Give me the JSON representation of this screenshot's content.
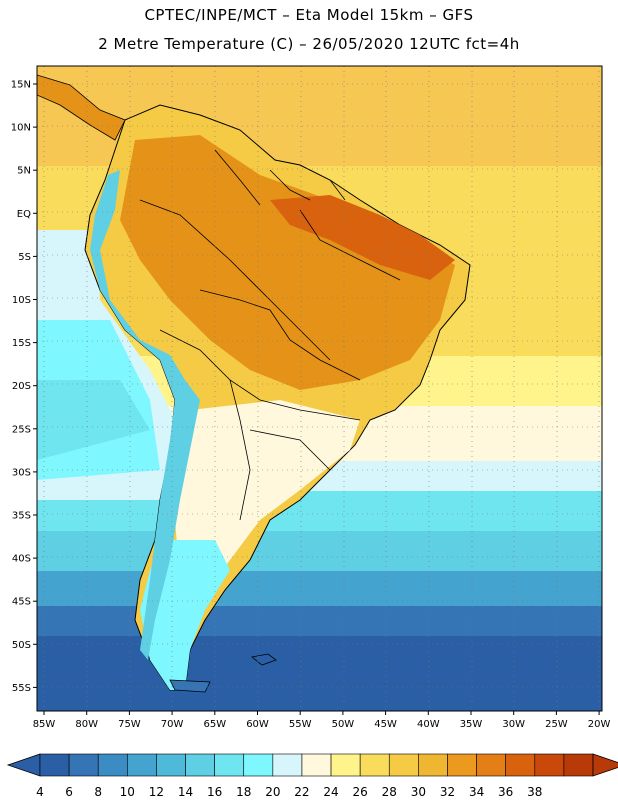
{
  "header": {
    "title_line1": "CPTEC/INPE/MCT –  Eta Model 15km – GFS",
    "title_line2": "2 Metre Temperature (C) – 26/05/2020 12UTC fct=4h"
  },
  "map": {
    "lat_labels": [
      "15N",
      "10N",
      "5N",
      "EQ",
      "5S",
      "10S",
      "15S",
      "20S",
      "25S",
      "30S",
      "35S",
      "40S",
      "45S",
      "50S",
      "55S"
    ],
    "lon_labels": [
      "85W",
      "80W",
      "75W",
      "70W",
      "65W",
      "60W",
      "55W",
      "50W",
      "45W",
      "40W",
      "35W",
      "30W",
      "25W",
      "20W"
    ]
  },
  "colorbar": {
    "ticks": [
      "4",
      "6",
      "8",
      "10",
      "12",
      "14",
      "16",
      "18",
      "20",
      "22",
      "24",
      "26",
      "28",
      "30",
      "32",
      "34",
      "36",
      "38"
    ],
    "colors": [
      "#2a5fa5",
      "#3575b5",
      "#3b8bc4",
      "#44a3cf",
      "#4fb9d9",
      "#5fcfe3",
      "#6fe6ef",
      "#7ff7ff",
      "#d7f6fb",
      "#fff8dd",
      "#fff48c",
      "#f9dc5c",
      "#f5cb45",
      "#efb632",
      "#eb9a1f",
      "#e47f17",
      "#d9620f",
      "#c9480a",
      "#b83a08"
    ],
    "low_color": "#2a5fa5",
    "high_color": "#b83a08"
  },
  "palette": {
    "ocean_north": "#f6c752",
    "ocean_mid": "#f9dc5c",
    "ocean_cream": "#fff8dd",
    "ocean_cyan": "#6fe6ef",
    "ocean_south": "#2a5fa5",
    "land_hot": "#e59218",
    "land_warm": "#f5cb45",
    "andes_cold": "#5fcfe3",
    "amazon_hot": "#d9620f"
  }
}
